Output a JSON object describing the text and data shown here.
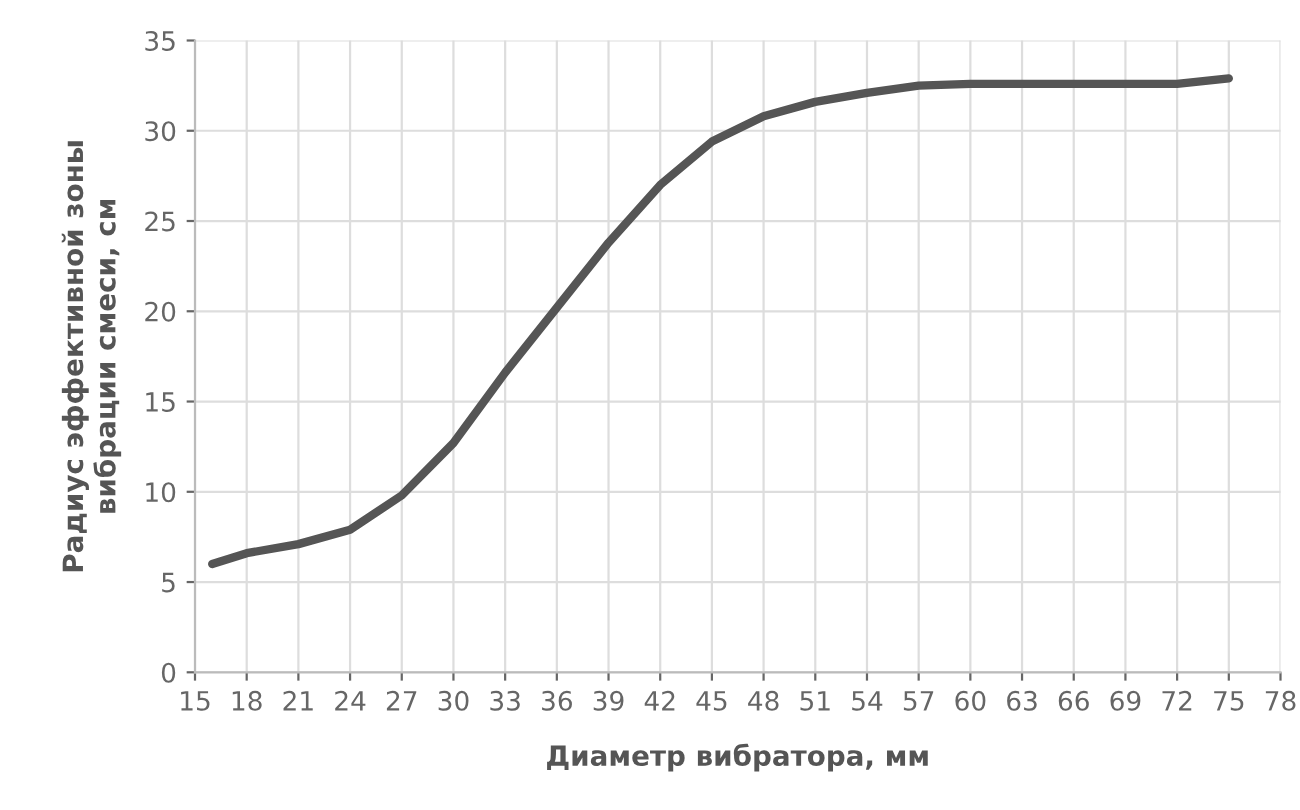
{
  "chart_data": {
    "type": "line",
    "xlabel": "Диаметр вибратора, мм",
    "ylabel": "Радиус эффективной зоны\nвибрации смеси, см",
    "x": [
      16,
      18,
      21,
      24,
      27,
      30,
      33,
      36,
      39,
      42,
      45,
      48,
      51,
      54,
      57,
      60,
      63,
      66,
      69,
      72,
      75
    ],
    "series": [
      {
        "color": "#555555",
        "values": [
          6,
          6.6,
          7.1,
          7.9,
          9.8,
          12.7,
          16.6,
          20.2,
          23.8,
          27,
          29.4,
          30.8,
          31.6,
          32.1,
          32.5,
          32.6,
          32.6,
          32.6,
          32.6,
          32.6,
          32.9
        ]
      }
    ],
    "xlim": [
      15,
      78
    ],
    "xticks": [
      15,
      18,
      21,
      24,
      27,
      30,
      33,
      36,
      39,
      42,
      45,
      48,
      51,
      54,
      57,
      60,
      63,
      66,
      69,
      72,
      75,
      78
    ],
    "ylim": [
      0,
      35
    ],
    "yticks": [
      0,
      5,
      10,
      15,
      20,
      25,
      30,
      35
    ],
    "grid": true,
    "marker": "none",
    "line_style": "solid"
  }
}
